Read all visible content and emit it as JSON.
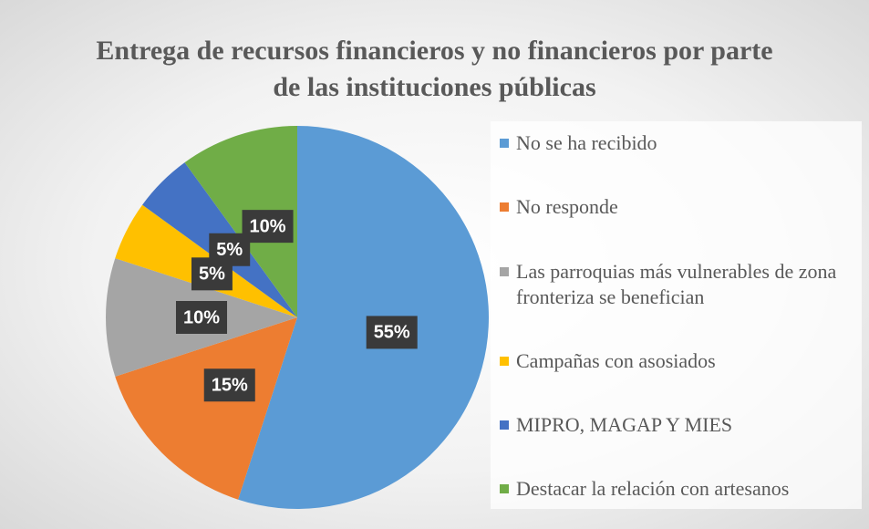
{
  "chart_data": {
    "type": "pie",
    "title": "Entrega de recursos financieros y no financieros por parte de las instituciones públicas",
    "categories": [
      "No se ha recibido",
      "No responde",
      "Las parroquias más vulnerables de zona fronteriza se benefician",
      "Campañas con asosiados",
      "MIPRO, MAGAP Y MIES",
      "Destacar la relación con artesanos"
    ],
    "values": [
      55,
      15,
      10,
      5,
      5,
      10
    ],
    "value_labels": [
      "55%",
      "15%",
      "10%",
      "5%",
      "5%",
      "10%"
    ],
    "colors": [
      "#5b9bd5",
      "#ed7d31",
      "#a5a5a5",
      "#ffc000",
      "#4472c4",
      "#70ad47"
    ],
    "legend": "right"
  }
}
